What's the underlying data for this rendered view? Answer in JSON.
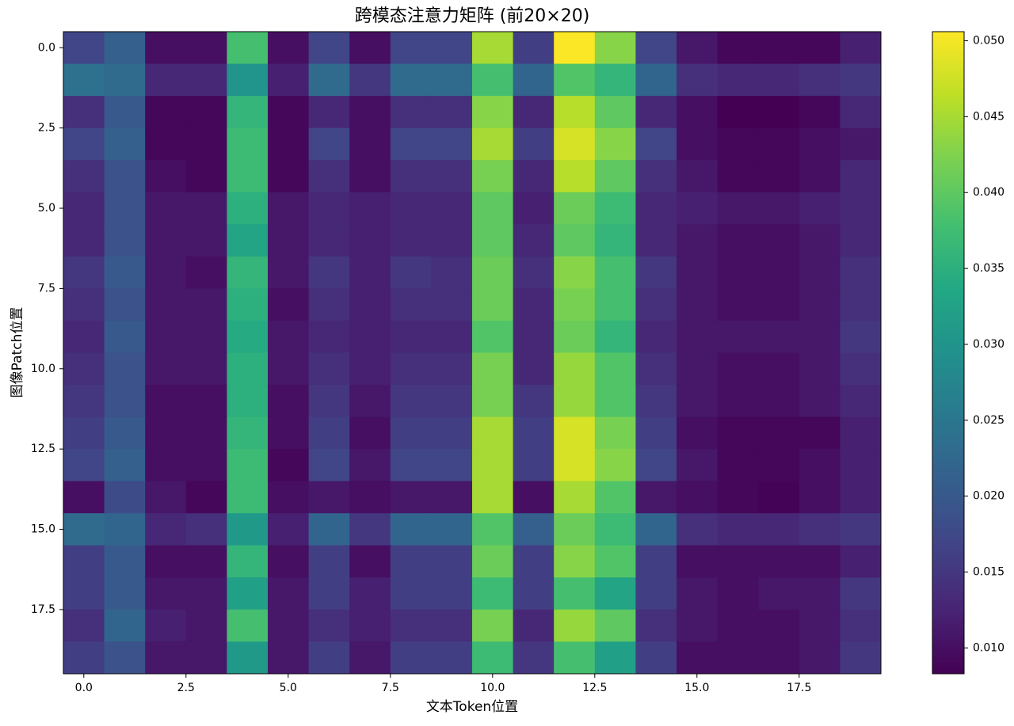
{
  "chart_data": {
    "type": "heatmap",
    "title": "跨模态注意力矩阵 (前20×20)",
    "x_label": "文本Token位置",
    "y_label": "图像Patch位置",
    "colormap": "viridis",
    "xlim": [
      -0.5,
      19.5
    ],
    "ylim": [
      19.5,
      -0.5
    ],
    "clim": [
      0.0083,
      0.0506
    ],
    "xticks": [
      {
        "value": 0,
        "label": "0.0"
      },
      {
        "value": 2.5,
        "label": "2.5"
      },
      {
        "value": 5,
        "label": "5.0"
      },
      {
        "value": 7.5,
        "label": "7.5"
      },
      {
        "value": 10,
        "label": "10.0"
      },
      {
        "value": 12.5,
        "label": "12.5"
      },
      {
        "value": 15,
        "label": "15.0"
      },
      {
        "value": 17.5,
        "label": "17.5"
      }
    ],
    "yticks": [
      {
        "value": 0,
        "label": "0.0"
      },
      {
        "value": 2.5,
        "label": "2.5"
      },
      {
        "value": 5,
        "label": "5.0"
      },
      {
        "value": 7.5,
        "label": "7.5"
      },
      {
        "value": 10,
        "label": "10.0"
      },
      {
        "value": 12.5,
        "label": "12.5"
      },
      {
        "value": 15,
        "label": "15.0"
      },
      {
        "value": 17.5,
        "label": "17.5"
      }
    ],
    "cticks": [
      {
        "value": 0.01,
        "label": "0.010"
      },
      {
        "value": 0.015,
        "label": "0.015"
      },
      {
        "value": 0.02,
        "label": "0.020"
      },
      {
        "value": 0.025,
        "label": "0.025"
      },
      {
        "value": 0.03,
        "label": "0.030"
      },
      {
        "value": 0.035,
        "label": "0.035"
      },
      {
        "value": 0.04,
        "label": "0.040"
      },
      {
        "value": 0.045,
        "label": "0.045"
      },
      {
        "value": 0.05,
        "label": "0.050"
      }
    ],
    "z": [
      [
        0.017,
        0.021,
        0.01,
        0.01,
        0.038,
        0.01,
        0.017,
        0.01,
        0.017,
        0.017,
        0.045,
        0.016,
        0.0505,
        0.043,
        0.017,
        0.011,
        0.009,
        0.009,
        0.009,
        0.012
      ],
      [
        0.024,
        0.023,
        0.013,
        0.013,
        0.03,
        0.012,
        0.023,
        0.015,
        0.023,
        0.023,
        0.038,
        0.022,
        0.039,
        0.036,
        0.022,
        0.014,
        0.013,
        0.013,
        0.014,
        0.015
      ],
      [
        0.014,
        0.02,
        0.009,
        0.009,
        0.036,
        0.009,
        0.013,
        0.01,
        0.014,
        0.014,
        0.043,
        0.013,
        0.046,
        0.04,
        0.013,
        0.01,
        0.008,
        0.008,
        0.009,
        0.013
      ],
      [
        0.017,
        0.021,
        0.009,
        0.009,
        0.037,
        0.009,
        0.017,
        0.01,
        0.017,
        0.017,
        0.045,
        0.016,
        0.048,
        0.043,
        0.017,
        0.01,
        0.009,
        0.009,
        0.01,
        0.011
      ],
      [
        0.014,
        0.019,
        0.01,
        0.009,
        0.037,
        0.009,
        0.014,
        0.01,
        0.014,
        0.014,
        0.042,
        0.013,
        0.046,
        0.04,
        0.014,
        0.011,
        0.009,
        0.009,
        0.01,
        0.013
      ],
      [
        0.013,
        0.019,
        0.011,
        0.011,
        0.035,
        0.011,
        0.013,
        0.012,
        0.013,
        0.013,
        0.04,
        0.012,
        0.041,
        0.037,
        0.013,
        0.012,
        0.011,
        0.011,
        0.012,
        0.013
      ],
      [
        0.013,
        0.019,
        0.011,
        0.011,
        0.033,
        0.011,
        0.013,
        0.012,
        0.013,
        0.013,
        0.04,
        0.013,
        0.04,
        0.036,
        0.013,
        0.011,
        0.01,
        0.01,
        0.011,
        0.013
      ],
      [
        0.015,
        0.02,
        0.011,
        0.01,
        0.036,
        0.011,
        0.015,
        0.012,
        0.015,
        0.014,
        0.041,
        0.014,
        0.043,
        0.038,
        0.015,
        0.011,
        0.01,
        0.01,
        0.011,
        0.014
      ],
      [
        0.014,
        0.019,
        0.011,
        0.011,
        0.035,
        0.01,
        0.014,
        0.012,
        0.014,
        0.014,
        0.041,
        0.013,
        0.042,
        0.038,
        0.014,
        0.011,
        0.01,
        0.01,
        0.011,
        0.014
      ],
      [
        0.013,
        0.02,
        0.011,
        0.011,
        0.034,
        0.011,
        0.013,
        0.012,
        0.013,
        0.013,
        0.039,
        0.013,
        0.041,
        0.036,
        0.013,
        0.011,
        0.011,
        0.011,
        0.011,
        0.015
      ],
      [
        0.014,
        0.019,
        0.011,
        0.011,
        0.035,
        0.011,
        0.014,
        0.012,
        0.014,
        0.014,
        0.042,
        0.013,
        0.044,
        0.039,
        0.014,
        0.011,
        0.01,
        0.01,
        0.011,
        0.014
      ],
      [
        0.015,
        0.019,
        0.01,
        0.01,
        0.035,
        0.01,
        0.015,
        0.011,
        0.015,
        0.015,
        0.042,
        0.015,
        0.044,
        0.039,
        0.015,
        0.011,
        0.01,
        0.01,
        0.011,
        0.013
      ],
      [
        0.016,
        0.02,
        0.01,
        0.01,
        0.036,
        0.01,
        0.016,
        0.01,
        0.016,
        0.016,
        0.045,
        0.016,
        0.048,
        0.042,
        0.016,
        0.01,
        0.009,
        0.009,
        0.009,
        0.012
      ],
      [
        0.017,
        0.021,
        0.01,
        0.01,
        0.037,
        0.009,
        0.017,
        0.011,
        0.017,
        0.017,
        0.045,
        0.016,
        0.048,
        0.043,
        0.017,
        0.011,
        0.009,
        0.009,
        0.01,
        0.012
      ],
      [
        0.01,
        0.018,
        0.011,
        0.009,
        0.037,
        0.01,
        0.011,
        0.01,
        0.011,
        0.011,
        0.045,
        0.01,
        0.045,
        0.039,
        0.011,
        0.01,
        0.009,
        0.0085,
        0.01,
        0.012
      ],
      [
        0.023,
        0.022,
        0.013,
        0.014,
        0.031,
        0.012,
        0.022,
        0.015,
        0.022,
        0.022,
        0.039,
        0.021,
        0.041,
        0.037,
        0.022,
        0.014,
        0.013,
        0.013,
        0.014,
        0.015
      ],
      [
        0.016,
        0.02,
        0.01,
        0.01,
        0.036,
        0.01,
        0.016,
        0.01,
        0.016,
        0.016,
        0.041,
        0.016,
        0.043,
        0.039,
        0.016,
        0.01,
        0.01,
        0.01,
        0.01,
        0.012
      ],
      [
        0.016,
        0.02,
        0.011,
        0.011,
        0.032,
        0.011,
        0.016,
        0.012,
        0.016,
        0.016,
        0.037,
        0.016,
        0.038,
        0.033,
        0.016,
        0.011,
        0.01,
        0.011,
        0.011,
        0.015
      ],
      [
        0.014,
        0.022,
        0.012,
        0.011,
        0.038,
        0.011,
        0.014,
        0.012,
        0.014,
        0.014,
        0.042,
        0.013,
        0.044,
        0.04,
        0.014,
        0.011,
        0.01,
        0.01,
        0.011,
        0.014
      ],
      [
        0.016,
        0.019,
        0.011,
        0.011,
        0.031,
        0.011,
        0.016,
        0.011,
        0.016,
        0.016,
        0.037,
        0.015,
        0.038,
        0.032,
        0.016,
        0.01,
        0.01,
        0.01,
        0.011,
        0.015
      ]
    ]
  }
}
